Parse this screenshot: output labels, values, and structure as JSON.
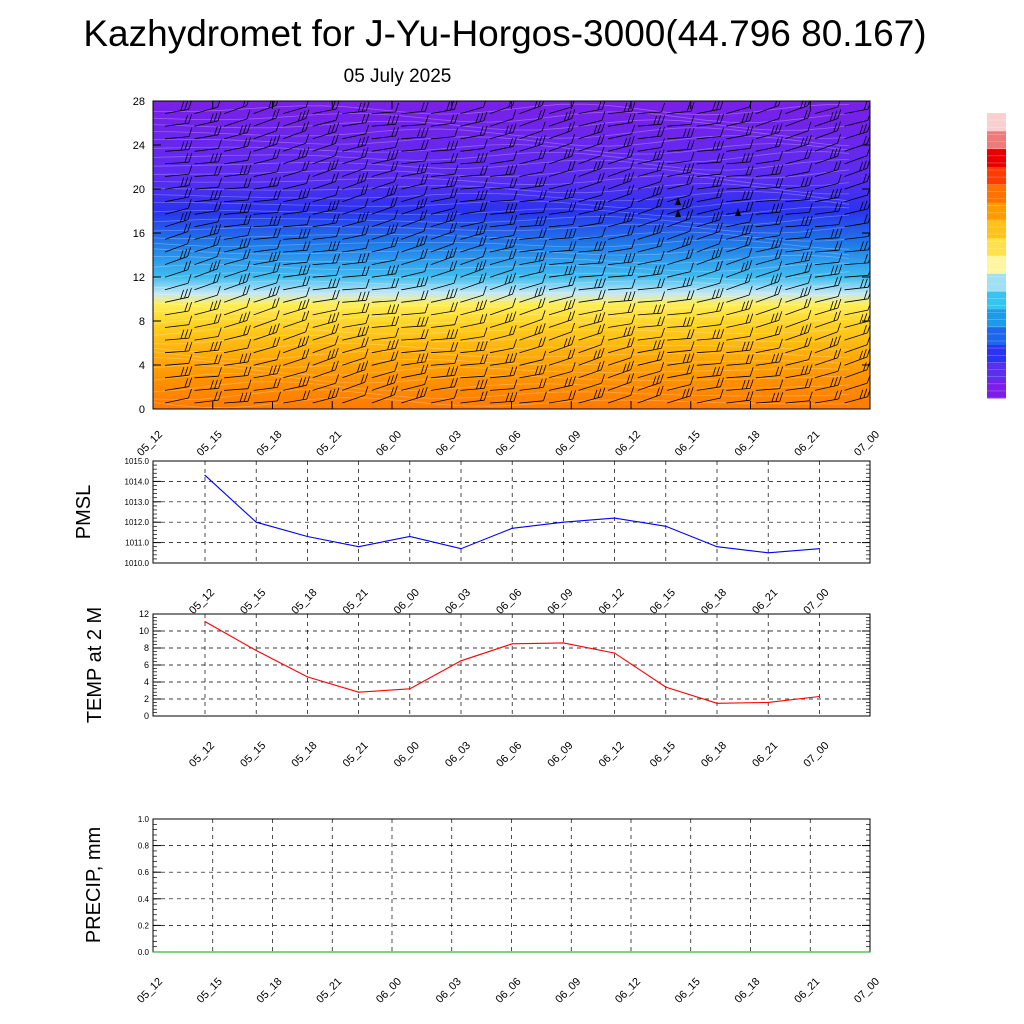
{
  "title": "Kazhydromet for J-Yu-Horgos-3000(44.796 80.167)",
  "subtitle": "05 July 2025",
  "chart_data": [
    {
      "type": "heatmap",
      "name": "cross-section",
      "x_categories": [
        "05_12",
        "05_15",
        "05_18",
        "05_21",
        "06_00",
        "06_03",
        "06_06",
        "06_09",
        "06_12",
        "06_15",
        "06_18",
        "06_21",
        "07_00"
      ],
      "ylim": [
        0,
        28
      ],
      "yticks": [
        0,
        4,
        8,
        12,
        16,
        20,
        24,
        28
      ],
      "colorbar_colors": [
        "#7b1fe8",
        "#5a2ff0",
        "#2b34f0",
        "#1f66ee",
        "#1e9be8",
        "#37c4ee",
        "#9fe0f3",
        "#fff7a0",
        "#ffe14a",
        "#ffc21a",
        "#ff9a00",
        "#ff7100",
        "#ff3c00",
        "#e80000",
        "#f07a7a",
        "#f8d0d0"
      ],
      "field_bands": [
        {
          "y": 0,
          "color": "#ff7a05"
        },
        {
          "y": 2.5,
          "color": "#ff9000"
        },
        {
          "y": 5,
          "color": "#ffad0a"
        },
        {
          "y": 7.5,
          "color": "#ffcf1e"
        },
        {
          "y": 9.5,
          "color": "#ffee55"
        },
        {
          "y": 10.5,
          "color": "#c6e8f4"
        },
        {
          "y": 12,
          "color": "#3fbdf0"
        },
        {
          "y": 15,
          "color": "#1f7ae8"
        },
        {
          "y": 18,
          "color": "#2a33ef"
        },
        {
          "y": 21,
          "color": "#5b2cf0"
        },
        {
          "y": 28,
          "color": "#7b1fe8"
        }
      ]
    },
    {
      "type": "line",
      "name": "pmsl",
      "ylabel": "PMSL",
      "categories": [
        "05_12",
        "05_15",
        "05_18",
        "05_21",
        "06_00",
        "06_03",
        "06_06",
        "06_09",
        "06_12",
        "06_15",
        "06_18",
        "06_21",
        "07_00"
      ],
      "ylim": [
        1010.0,
        1015.0
      ],
      "yticks": [
        "1010.0",
        "1011.0",
        "1012.0",
        "1013.0",
        "1014.0",
        "1015.0"
      ],
      "series": [
        {
          "values": [
            1014.3,
            1012.0,
            1011.3,
            1010.8,
            1011.3,
            1010.7,
            1011.7,
            1012.0,
            1012.2,
            1011.8,
            1010.8,
            1010.5,
            1010.7
          ],
          "color": "#0000ff"
        }
      ]
    },
    {
      "type": "line",
      "name": "temp",
      "ylabel": "TEMP at 2 M",
      "categories": [
        "05_12",
        "05_15",
        "05_18",
        "05_21",
        "06_00",
        "06_03",
        "06_06",
        "06_09",
        "06_12",
        "06_15",
        "06_18",
        "06_21",
        "07_00"
      ],
      "ylim": [
        0,
        12
      ],
      "yticks": [
        "0",
        "2",
        "4",
        "6",
        "8",
        "10",
        "12"
      ],
      "series": [
        {
          "values": [
            11.1,
            7.7,
            4.6,
            2.8,
            3.2,
            6.5,
            8.5,
            8.6,
            7.4,
            3.4,
            1.5,
            1.6,
            2.3
          ],
          "color": "#ff0000"
        }
      ]
    },
    {
      "type": "line",
      "name": "precip",
      "ylabel": "PRECIP, mm",
      "categories": [
        "05_12",
        "05_15",
        "05_18",
        "05_21",
        "06_00",
        "06_03",
        "06_06",
        "06_09",
        "06_12",
        "06_15",
        "06_18",
        "06_21",
        "07_00"
      ],
      "ylim": [
        0,
        1.0
      ],
      "yticks": [
        "0.0",
        "0.2",
        "0.4",
        "0.6",
        "0.8",
        "1.0"
      ],
      "series": [
        {
          "values": [
            0,
            0,
            0,
            0,
            0,
            0,
            0,
            0,
            0,
            0,
            0,
            0,
            0
          ],
          "color": "#00aa00"
        }
      ]
    }
  ]
}
